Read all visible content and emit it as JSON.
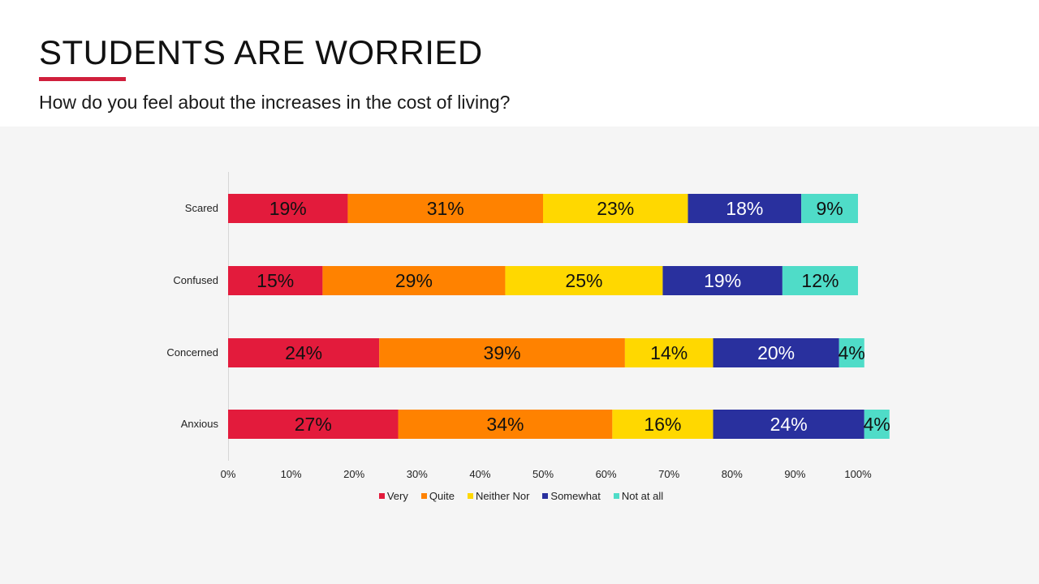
{
  "header": {
    "title": "STUDENTS ARE WORRIED",
    "subtitle": "How do you feel about the increases in the cost of living?"
  },
  "colors": {
    "accent": "#d01f3c",
    "very": "#e31b3c",
    "quite": "#ff8200",
    "neither": "#ffd800",
    "somewhat": "#29309e",
    "not_at_all": "#4fdcc8"
  },
  "chart_data": {
    "type": "bar",
    "orientation": "horizontal",
    "stacked": true,
    "title": "How do you feel about the increases in the cost of living?",
    "categories": [
      "Scared",
      "Confused",
      "Concerned",
      "Anxious"
    ],
    "series": [
      {
        "name": "Very",
        "color": "#e31b3c",
        "values": [
          19,
          15,
          24,
          27
        ],
        "labels": [
          "19%",
          "15%",
          "24%",
          "27%"
        ]
      },
      {
        "name": "Quite",
        "color": "#ff8200",
        "values": [
          31,
          29,
          39,
          34
        ],
        "labels": [
          "31%",
          "29%",
          "39%",
          "34%"
        ]
      },
      {
        "name": "Neither Nor",
        "color": "#ffd800",
        "values": [
          23,
          25,
          14,
          16
        ],
        "labels": [
          "23%",
          "25%",
          "14%",
          "16%"
        ]
      },
      {
        "name": "Somewhat",
        "color": "#29309e",
        "values": [
          18,
          19,
          20,
          24
        ],
        "labels": [
          "18%",
          "19%",
          "20%",
          "24%"
        ]
      },
      {
        "name": "Not at all",
        "color": "#4fdcc8",
        "values": [
          9,
          12,
          4,
          4
        ],
        "labels": [
          "9%",
          "12%",
          "4%",
          "4%"
        ]
      }
    ],
    "x_ticks": [
      "0%",
      "10%",
      "20%",
      "30%",
      "40%",
      "50%",
      "60%",
      "70%",
      "80%",
      "90%",
      "100%"
    ],
    "xlim": [
      0,
      100
    ],
    "xlabel": "",
    "ylabel": "",
    "grid": false,
    "legend_position": "bottom"
  }
}
